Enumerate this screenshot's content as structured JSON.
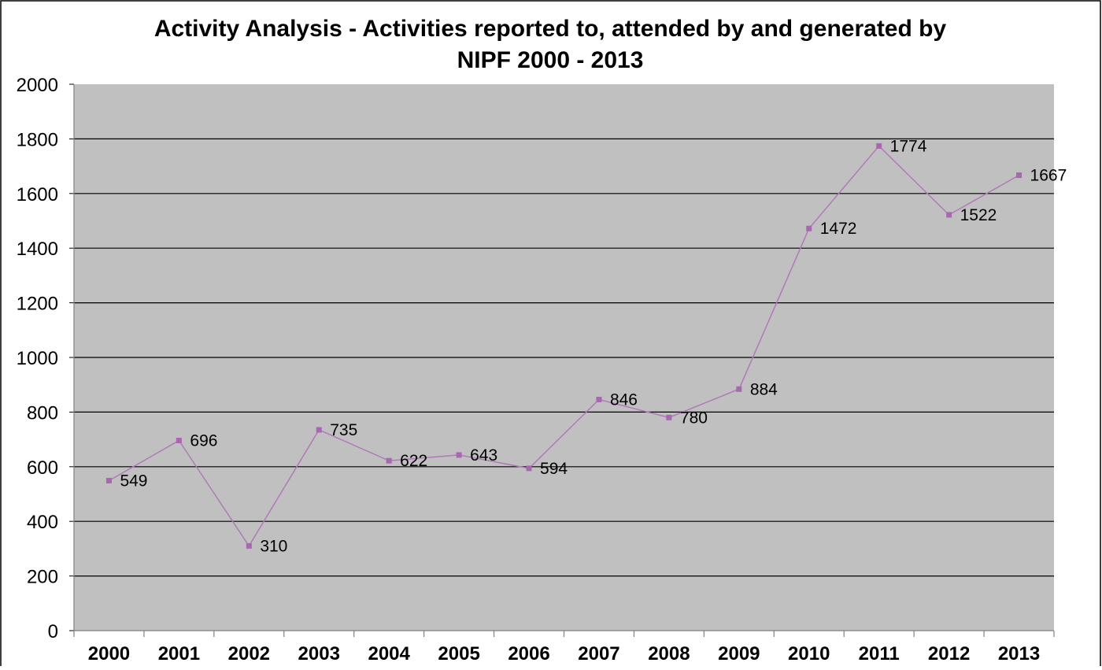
{
  "chart_data": {
    "type": "line",
    "title": "Activity Analysis - Activities reported to, attended by and generated by",
    "subtitle": "NIPF 2000 - 2013",
    "xlabel": "",
    "ylabel": "",
    "categories": [
      "2000",
      "2001",
      "2002",
      "2003",
      "2004",
      "2005",
      "2006",
      "2007",
      "2008",
      "2009",
      "2010",
      "2011",
      "2012",
      "2013"
    ],
    "series": [
      {
        "values": [
          549,
          696,
          310,
          735,
          622,
          643,
          594,
          846,
          780,
          884,
          1472,
          1774,
          1522,
          1667
        ]
      }
    ],
    "yticks": [
      "0",
      "200",
      "400",
      "600",
      "800",
      "1000",
      "1200",
      "1400",
      "1600",
      "1800",
      "2000"
    ],
    "ylim": [
      0,
      2000
    ],
    "grid": "horizontal",
    "legend": "none",
    "data_labels": true,
    "colors": {
      "plot_background": "#c0c0c0",
      "line": "#b07ab8",
      "marker": "#a868b0",
      "gridline": "#000000",
      "frame": "#000000"
    }
  }
}
